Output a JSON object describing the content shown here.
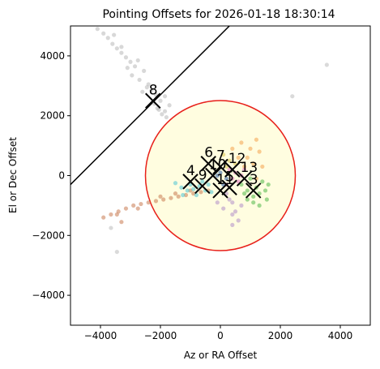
{
  "chart_data": {
    "type": "scatter",
    "title": "Pointing Offsets for 2026-01-18 18:30:14",
    "xlabel": "Az or RA Offset",
    "ylabel": "El or Dec Offset",
    "xlim": [
      -5000,
      5000
    ],
    "ylim": [
      -5000,
      5000
    ],
    "xticks": [
      -4000,
      -2000,
      0,
      2000,
      4000
    ],
    "yticks": [
      -4000,
      -2000,
      0,
      2000,
      4000
    ],
    "x_tick_labels": [
      "−4000",
      "−2000",
      "0",
      "2000",
      "4000"
    ],
    "y_tick_labels": [
      "−4000",
      "−2000",
      "0",
      "2000",
      "4000"
    ],
    "grid": false,
    "circle": {
      "center": [
        0,
        0
      ],
      "radius": 2500,
      "fill": "#fffde0",
      "edge": "#e8201a"
    },
    "boundary_line": {
      "points": [
        [
          -5000,
          -300
        ],
        [
          300,
          5000
        ]
      ],
      "color": "#000000"
    },
    "series": [
      {
        "color": "#b8b8b8",
        "points": [
          [
            -4100,
            4900
          ],
          [
            -3900,
            4750
          ],
          [
            -3750,
            4600
          ],
          [
            -3600,
            4400
          ],
          [
            -3450,
            4250
          ],
          [
            -3300,
            4100
          ],
          [
            -3150,
            3950
          ],
          [
            -3000,
            3800
          ],
          [
            -2850,
            3650
          ],
          [
            -2950,
            3350
          ],
          [
            -2700,
            3200
          ],
          [
            -2550,
            3500
          ],
          [
            -2400,
            3050
          ],
          [
            -2300,
            2850
          ],
          [
            -2150,
            2700
          ],
          [
            -2000,
            2500
          ],
          [
            -1850,
            2650
          ],
          [
            -1700,
            2350
          ],
          [
            -1850,
            2150
          ],
          [
            -2100,
            2250
          ],
          [
            -2450,
            2950
          ],
          [
            -2750,
            3850
          ],
          [
            -3300,
            4300
          ],
          [
            -1950,
            2050
          ],
          [
            -1800,
            1950
          ],
          [
            -3550,
            4700
          ],
          [
            -2600,
            2800
          ],
          [
            -2200,
            2400
          ],
          [
            -2050,
            2200
          ],
          [
            -3100,
            3600
          ]
        ]
      },
      {
        "color": "#c87a50",
        "points": [
          [
            -3900,
            -1400
          ],
          [
            -3650,
            -1300
          ],
          [
            -3400,
            -1200
          ],
          [
            -3150,
            -1100
          ],
          [
            -2900,
            -1000
          ],
          [
            -2650,
            -950
          ],
          [
            -2400,
            -900
          ],
          [
            -2150,
            -850
          ],
          [
            -1900,
            -800
          ],
          [
            -1650,
            -750
          ],
          [
            -1400,
            -700
          ],
          [
            -1150,
            -650
          ],
          [
            -900,
            -600
          ],
          [
            -650,
            -550
          ],
          [
            -400,
            -500
          ],
          [
            -2000,
            -700
          ],
          [
            -1500,
            -600
          ],
          [
            -1000,
            -500
          ],
          [
            -3450,
            -1300
          ],
          [
            -3300,
            -1550
          ],
          [
            -2750,
            -1100
          ]
        ]
      },
      {
        "color": "#bbbbbb",
        "points": [
          [
            -3450,
            -2550
          ],
          [
            -3650,
            -1750
          ],
          [
            3550,
            3700
          ],
          [
            2400,
            2650
          ]
        ]
      },
      {
        "color": "#4cc4d4",
        "points": [
          [
            -1500,
            -250
          ],
          [
            -1300,
            -400
          ],
          [
            -1100,
            -500
          ],
          [
            -900,
            -450
          ],
          [
            -700,
            -350
          ],
          [
            -500,
            -500
          ],
          [
            -300,
            -550
          ],
          [
            -1000,
            -300
          ],
          [
            -600,
            -200
          ],
          [
            -800,
            -650
          ],
          [
            -1250,
            -650
          ],
          [
            -400,
            -300
          ]
        ]
      },
      {
        "color": "#f4a24c",
        "points": [
          [
            400,
            900
          ],
          [
            700,
            1100
          ],
          [
            1000,
            900
          ],
          [
            1200,
            1200
          ],
          [
            900,
            600
          ],
          [
            1300,
            800
          ],
          [
            1100,
            400
          ],
          [
            800,
            300
          ],
          [
            600,
            600
          ],
          [
            1400,
            300
          ],
          [
            1200,
            -100
          ]
        ]
      },
      {
        "color": "#50b848",
        "points": [
          [
            700,
            -300
          ],
          [
            900,
            -500
          ],
          [
            1100,
            -700
          ],
          [
            1300,
            -600
          ],
          [
            1500,
            -500
          ],
          [
            1400,
            -200
          ],
          [
            1200,
            -400
          ],
          [
            1000,
            -100
          ],
          [
            800,
            -600
          ],
          [
            1600,
            -300
          ],
          [
            1100,
            -900
          ],
          [
            1300,
            -1000
          ],
          [
            900,
            -800
          ],
          [
            1550,
            -800
          ]
        ]
      },
      {
        "color": "#b08ec8",
        "points": [
          [
            200,
            -600
          ],
          [
            400,
            -900
          ],
          [
            500,
            -1200
          ],
          [
            600,
            -1500
          ],
          [
            400,
            -1300
          ],
          [
            100,
            -1100
          ],
          [
            300,
            -800
          ],
          [
            -100,
            -900
          ],
          [
            700,
            -1000
          ],
          [
            400,
            -1650
          ]
        ]
      },
      {
        "color": "#e377c2",
        "points": [
          [
            300,
            200
          ],
          [
            500,
            100
          ],
          [
            700,
            0
          ],
          [
            600,
            -200
          ],
          [
            400,
            -100
          ],
          [
            200,
            -300
          ],
          [
            800,
            200
          ]
        ]
      },
      {
        "color": "#d7c24a",
        "points": [
          [
            100,
            700
          ],
          [
            300,
            500
          ],
          [
            500,
            400
          ],
          [
            200,
            300
          ]
        ]
      },
      {
        "color": "#3060a8",
        "points": [
          [
            0,
            100
          ],
          [
            200,
            -100
          ],
          [
            100,
            -300
          ],
          [
            -100,
            0
          ]
        ]
      }
    ],
    "markers": [
      {
        "label": "8",
        "x": -2250,
        "y": 2500
      },
      {
        "label": "6",
        "x": -400,
        "y": 400
      },
      {
        "label": "7",
        "x": 0,
        "y": 300
      },
      {
        "label": "12",
        "x": 400,
        "y": 200
      },
      {
        "label": "10",
        "x": -250,
        "y": 0
      },
      {
        "label": "13",
        "x": 800,
        "y": -100
      },
      {
        "label": "3",
        "x": 1100,
        "y": -500
      },
      {
        "label": "4",
        "x": -1000,
        "y": -200
      },
      {
        "label": "5",
        "x": 300,
        "y": -400
      },
      {
        "label": "9",
        "x": -600,
        "y": -350
      },
      {
        "label": "11",
        "x": 0,
        "y": -500
      }
    ]
  }
}
